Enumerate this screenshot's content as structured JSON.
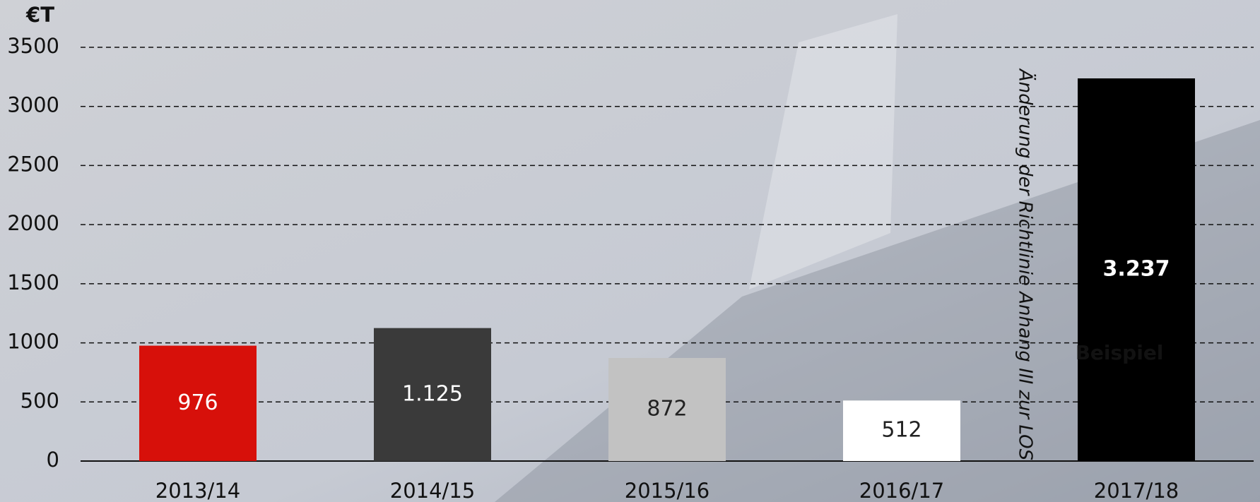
{
  "chart_data": {
    "type": "bar",
    "y_unit": "€T",
    "annotation": "Änderung der Richtlinie Anhang III zur LOS",
    "watermark": "Beispiel",
    "categories": [
      "2013/14",
      "2014/15",
      "2015/16",
      "2016/17",
      "2017/18"
    ],
    "values": [
      976,
      1125,
      872,
      512,
      3237
    ],
    "value_labels": [
      "976",
      "1.125",
      "872",
      "512",
      "3.237"
    ],
    "colors": [
      "#d7100a",
      "#3a3a3a",
      "#c2c2c2",
      "#ffffff",
      "#000000"
    ],
    "label_colors": [
      "#ffffff",
      "#ffffff",
      "#222222",
      "#222222",
      "#ffffff"
    ],
    "ylim": [
      0,
      3500
    ],
    "yticks": [
      0,
      500,
      1000,
      1500,
      2000,
      2500,
      3000,
      3500
    ],
    "grid": true
  }
}
